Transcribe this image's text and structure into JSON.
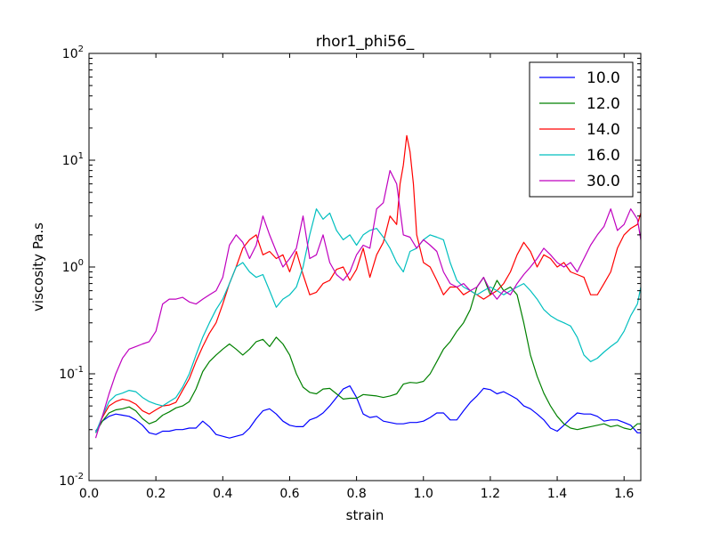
{
  "chart_data": {
    "type": "line",
    "title": "rhor1_phi56_",
    "xlabel": "strain",
    "ylabel": "viscosity Pa.s",
    "xlim": [
      0.0,
      1.65
    ],
    "ylim": [
      0.01,
      100
    ],
    "yscale": "log",
    "x_ticks": [
      0.0,
      0.2,
      0.4,
      0.6,
      0.8,
      1.0,
      1.2,
      1.4,
      1.6
    ],
    "x_tick_labels": [
      "0.0",
      "0.2",
      "0.4",
      "0.6",
      "0.8",
      "1.0",
      "1.2",
      "1.4",
      "1.6"
    ],
    "y_ticks": [
      0.01,
      0.1,
      1,
      10,
      100
    ],
    "y_tick_labels": [
      {
        "base": "10",
        "exp": "-2"
      },
      {
        "base": "10",
        "exp": "-1"
      },
      {
        "base": "10",
        "exp": "0"
      },
      {
        "base": "10",
        "exp": "1"
      },
      {
        "base": "10",
        "exp": "2"
      }
    ],
    "grid": false,
    "legend_position": "top-right",
    "series": [
      {
        "name": "10.0",
        "color": "#0000ff",
        "x": [
          0.02,
          0.04,
          0.06,
          0.08,
          0.1,
          0.12,
          0.14,
          0.16,
          0.18,
          0.2,
          0.22,
          0.24,
          0.26,
          0.28,
          0.3,
          0.32,
          0.34,
          0.36,
          0.38,
          0.4,
          0.42,
          0.44,
          0.46,
          0.48,
          0.5,
          0.52,
          0.54,
          0.56,
          0.58,
          0.6,
          0.62,
          0.64,
          0.66,
          0.68,
          0.7,
          0.72,
          0.74,
          0.76,
          0.78,
          0.8,
          0.82,
          0.84,
          0.86,
          0.88,
          0.9,
          0.92,
          0.94,
          0.96,
          0.98,
          1.0,
          1.02,
          1.04,
          1.06,
          1.08,
          1.1,
          1.12,
          1.14,
          1.16,
          1.18,
          1.2,
          1.22,
          1.24,
          1.26,
          1.28,
          1.3,
          1.32,
          1.34,
          1.36,
          1.38,
          1.4,
          1.42,
          1.44,
          1.46,
          1.48,
          1.5,
          1.52,
          1.54,
          1.56,
          1.58,
          1.6,
          1.62,
          1.64,
          1.65
        ],
        "y": [
          0.029,
          0.036,
          0.04,
          0.042,
          0.041,
          0.04,
          0.037,
          0.033,
          0.028,
          0.027,
          0.029,
          0.029,
          0.03,
          0.03,
          0.031,
          0.031,
          0.036,
          0.032,
          0.027,
          0.026,
          0.025,
          0.026,
          0.027,
          0.031,
          0.038,
          0.045,
          0.047,
          0.042,
          0.036,
          0.033,
          0.032,
          0.032,
          0.037,
          0.039,
          0.043,
          0.05,
          0.06,
          0.072,
          0.077,
          0.06,
          0.042,
          0.039,
          0.04,
          0.036,
          0.035,
          0.034,
          0.034,
          0.035,
          0.035,
          0.036,
          0.039,
          0.043,
          0.043,
          0.037,
          0.037,
          0.045,
          0.054,
          0.062,
          0.073,
          0.071,
          0.065,
          0.068,
          0.063,
          0.058,
          0.05,
          0.047,
          0.042,
          0.037,
          0.031,
          0.029,
          0.033,
          0.038,
          0.043,
          0.042,
          0.042,
          0.04,
          0.036,
          0.037,
          0.037,
          0.035,
          0.033,
          0.028,
          0.028
        ]
      },
      {
        "name": "12.0",
        "color": "#008000",
        "x": [
          0.02,
          0.04,
          0.06,
          0.08,
          0.1,
          0.12,
          0.14,
          0.16,
          0.18,
          0.2,
          0.22,
          0.24,
          0.26,
          0.28,
          0.3,
          0.32,
          0.34,
          0.36,
          0.38,
          0.4,
          0.42,
          0.44,
          0.46,
          0.48,
          0.5,
          0.52,
          0.54,
          0.56,
          0.58,
          0.6,
          0.62,
          0.64,
          0.66,
          0.68,
          0.7,
          0.72,
          0.74,
          0.76,
          0.78,
          0.8,
          0.82,
          0.84,
          0.86,
          0.88,
          0.9,
          0.92,
          0.94,
          0.96,
          0.98,
          1.0,
          1.02,
          1.04,
          1.06,
          1.08,
          1.1,
          1.12,
          1.14,
          1.16,
          1.18,
          1.2,
          1.22,
          1.24,
          1.26,
          1.28,
          1.3,
          1.32,
          1.34,
          1.36,
          1.38,
          1.4,
          1.42,
          1.44,
          1.46,
          1.48,
          1.5,
          1.52,
          1.54,
          1.56,
          1.58,
          1.6,
          1.62,
          1.64,
          1.65
        ],
        "y": [
          0.028,
          0.036,
          0.043,
          0.046,
          0.047,
          0.049,
          0.045,
          0.038,
          0.034,
          0.036,
          0.041,
          0.044,
          0.048,
          0.05,
          0.055,
          0.072,
          0.105,
          0.13,
          0.15,
          0.17,
          0.19,
          0.17,
          0.15,
          0.17,
          0.2,
          0.21,
          0.18,
          0.22,
          0.19,
          0.15,
          0.1,
          0.075,
          0.067,
          0.065,
          0.072,
          0.073,
          0.065,
          0.058,
          0.059,
          0.059,
          0.064,
          0.063,
          0.062,
          0.06,
          0.062,
          0.065,
          0.08,
          0.083,
          0.082,
          0.085,
          0.1,
          0.13,
          0.17,
          0.2,
          0.25,
          0.3,
          0.4,
          0.65,
          0.8,
          0.55,
          0.75,
          0.6,
          0.65,
          0.55,
          0.3,
          0.15,
          0.095,
          0.066,
          0.05,
          0.04,
          0.034,
          0.031,
          0.03,
          0.031,
          0.032,
          0.033,
          0.034,
          0.032,
          0.033,
          0.031,
          0.03,
          0.034,
          0.034
        ]
      },
      {
        "name": "14.0",
        "color": "#ff0000",
        "x": [
          0.02,
          0.04,
          0.06,
          0.08,
          0.1,
          0.12,
          0.14,
          0.16,
          0.18,
          0.2,
          0.22,
          0.24,
          0.26,
          0.28,
          0.3,
          0.32,
          0.34,
          0.36,
          0.38,
          0.4,
          0.42,
          0.44,
          0.46,
          0.48,
          0.5,
          0.52,
          0.54,
          0.56,
          0.58,
          0.6,
          0.62,
          0.64,
          0.66,
          0.68,
          0.7,
          0.72,
          0.74,
          0.76,
          0.78,
          0.8,
          0.82,
          0.84,
          0.86,
          0.88,
          0.9,
          0.92,
          0.93,
          0.94,
          0.95,
          0.96,
          0.97,
          0.98,
          1.0,
          1.02,
          1.04,
          1.06,
          1.08,
          1.1,
          1.12,
          1.14,
          1.16,
          1.18,
          1.2,
          1.22,
          1.24,
          1.26,
          1.28,
          1.3,
          1.32,
          1.34,
          1.36,
          1.38,
          1.4,
          1.42,
          1.44,
          1.46,
          1.48,
          1.5,
          1.52,
          1.54,
          1.56,
          1.58,
          1.6,
          1.62,
          1.64,
          1.65
        ],
        "y": [
          0.028,
          0.039,
          0.05,
          0.055,
          0.058,
          0.056,
          0.052,
          0.045,
          0.042,
          0.046,
          0.05,
          0.051,
          0.054,
          0.07,
          0.09,
          0.13,
          0.18,
          0.24,
          0.3,
          0.45,
          0.7,
          1.0,
          1.5,
          1.8,
          2.0,
          1.3,
          1.4,
          1.2,
          1.3,
          0.9,
          1.4,
          0.85,
          0.55,
          0.58,
          0.7,
          0.75,
          0.95,
          1.0,
          0.75,
          0.95,
          1.5,
          0.8,
          1.3,
          1.7,
          3.0,
          2.5,
          6.0,
          9.0,
          17.0,
          12.0,
          6.0,
          2.0,
          1.1,
          1.0,
          0.75,
          0.55,
          0.65,
          0.65,
          0.55,
          0.6,
          0.55,
          0.5,
          0.55,
          0.6,
          0.7,
          0.9,
          1.3,
          1.7,
          1.4,
          1.0,
          1.3,
          1.2,
          1.0,
          1.1,
          0.9,
          0.85,
          0.8,
          0.55,
          0.55,
          0.7,
          0.9,
          1.5,
          2.0,
          2.3,
          2.5,
          3.2
        ]
      },
      {
        "name": "16.0",
        "color": "#00bfbf",
        "x": [
          0.02,
          0.04,
          0.06,
          0.08,
          0.1,
          0.12,
          0.14,
          0.16,
          0.18,
          0.2,
          0.22,
          0.24,
          0.26,
          0.28,
          0.3,
          0.32,
          0.34,
          0.36,
          0.38,
          0.4,
          0.42,
          0.44,
          0.46,
          0.48,
          0.5,
          0.52,
          0.54,
          0.56,
          0.58,
          0.6,
          0.62,
          0.64,
          0.66,
          0.68,
          0.7,
          0.72,
          0.74,
          0.76,
          0.78,
          0.8,
          0.82,
          0.84,
          0.86,
          0.88,
          0.9,
          0.92,
          0.94,
          0.96,
          0.98,
          1.0,
          1.02,
          1.04,
          1.06,
          1.08,
          1.1,
          1.12,
          1.14,
          1.16,
          1.18,
          1.2,
          1.22,
          1.24,
          1.26,
          1.28,
          1.3,
          1.32,
          1.34,
          1.36,
          1.38,
          1.4,
          1.42,
          1.44,
          1.46,
          1.48,
          1.5,
          1.52,
          1.54,
          1.56,
          1.58,
          1.6,
          1.62,
          1.64,
          1.65
        ],
        "y": [
          0.028,
          0.04,
          0.055,
          0.063,
          0.066,
          0.07,
          0.068,
          0.06,
          0.055,
          0.052,
          0.05,
          0.055,
          0.06,
          0.075,
          0.1,
          0.15,
          0.22,
          0.3,
          0.4,
          0.5,
          0.7,
          1.0,
          1.1,
          0.9,
          0.8,
          0.85,
          0.6,
          0.42,
          0.5,
          0.55,
          0.65,
          1.0,
          2.0,
          3.5,
          2.8,
          3.2,
          2.2,
          1.8,
          2.0,
          1.6,
          2.0,
          2.2,
          2.3,
          1.9,
          1.5,
          1.1,
          0.9,
          1.4,
          1.5,
          1.8,
          2.0,
          1.9,
          1.8,
          1.1,
          0.75,
          0.65,
          0.6,
          0.55,
          0.6,
          0.65,
          0.6,
          0.55,
          0.6,
          0.65,
          0.7,
          0.6,
          0.5,
          0.4,
          0.35,
          0.32,
          0.3,
          0.28,
          0.22,
          0.15,
          0.13,
          0.14,
          0.16,
          0.18,
          0.2,
          0.25,
          0.35,
          0.45,
          0.65
        ]
      },
      {
        "name": "30.0",
        "color": "#bf00bf",
        "x": [
          0.02,
          0.04,
          0.06,
          0.08,
          0.1,
          0.12,
          0.14,
          0.16,
          0.18,
          0.2,
          0.22,
          0.24,
          0.26,
          0.28,
          0.3,
          0.32,
          0.34,
          0.36,
          0.38,
          0.4,
          0.42,
          0.44,
          0.46,
          0.48,
          0.5,
          0.52,
          0.54,
          0.56,
          0.58,
          0.6,
          0.62,
          0.64,
          0.66,
          0.68,
          0.7,
          0.72,
          0.74,
          0.76,
          0.78,
          0.8,
          0.82,
          0.84,
          0.86,
          0.88,
          0.9,
          0.92,
          0.94,
          0.96,
          0.98,
          1.0,
          1.02,
          1.04,
          1.06,
          1.08,
          1.1,
          1.12,
          1.14,
          1.16,
          1.18,
          1.2,
          1.22,
          1.24,
          1.26,
          1.28,
          1.3,
          1.32,
          1.34,
          1.36,
          1.38,
          1.4,
          1.42,
          1.44,
          1.46,
          1.48,
          1.5,
          1.52,
          1.54,
          1.56,
          1.58,
          1.6,
          1.62,
          1.64,
          1.65
        ],
        "y": [
          0.025,
          0.04,
          0.065,
          0.1,
          0.14,
          0.17,
          0.18,
          0.19,
          0.2,
          0.25,
          0.45,
          0.5,
          0.5,
          0.52,
          0.47,
          0.45,
          0.5,
          0.55,
          0.6,
          0.8,
          1.6,
          2.0,
          1.7,
          1.2,
          1.6,
          3.0,
          2.0,
          1.4,
          1.0,
          1.2,
          1.5,
          3.0,
          1.2,
          1.3,
          2.0,
          1.1,
          0.85,
          0.75,
          0.9,
          1.3,
          1.6,
          1.5,
          3.5,
          4.0,
          8.0,
          6.0,
          2.0,
          1.9,
          1.5,
          1.8,
          1.6,
          1.4,
          0.9,
          0.7,
          0.65,
          0.7,
          0.6,
          0.65,
          0.8,
          0.6,
          0.5,
          0.6,
          0.55,
          0.7,
          0.85,
          1.0,
          1.2,
          1.5,
          1.3,
          1.1,
          1.0,
          1.1,
          0.9,
          1.2,
          1.6,
          2.0,
          2.4,
          3.5,
          2.2,
          2.5,
          3.5,
          2.8,
          1.8
        ]
      }
    ]
  }
}
